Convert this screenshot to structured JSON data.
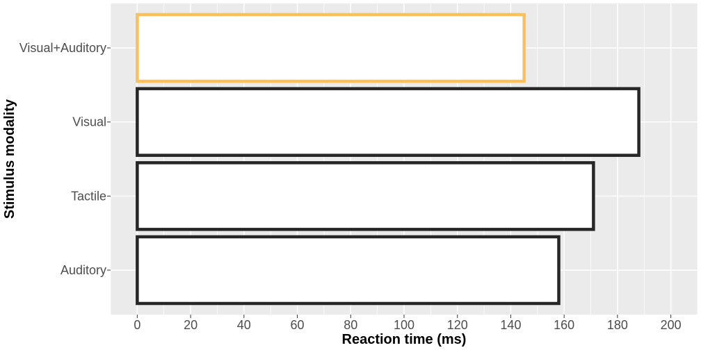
{
  "chart_data": {
    "type": "bar",
    "orientation": "horizontal",
    "xlabel": "Reaction time (ms)",
    "ylabel": "Stimulus modality",
    "xlim": [
      -10,
      210
    ],
    "x_ticks": [
      0,
      20,
      40,
      60,
      80,
      100,
      120,
      140,
      160,
      180,
      200
    ],
    "x_tick_labels": [
      "0",
      "20",
      "40",
      "60",
      "80",
      "100",
      "120",
      "140",
      "160",
      "180",
      "200"
    ],
    "categories": [
      "Auditory",
      "Tactile",
      "Visual",
      "Visual+Auditory"
    ],
    "values": [
      158,
      171,
      188,
      145
    ],
    "bar_outline_colors": [
      "#262626",
      "#262626",
      "#262626",
      "#FDBF5A"
    ],
    "bar_fill": "#ffffff",
    "panel_background": "#EBEBEB",
    "grid": true
  }
}
